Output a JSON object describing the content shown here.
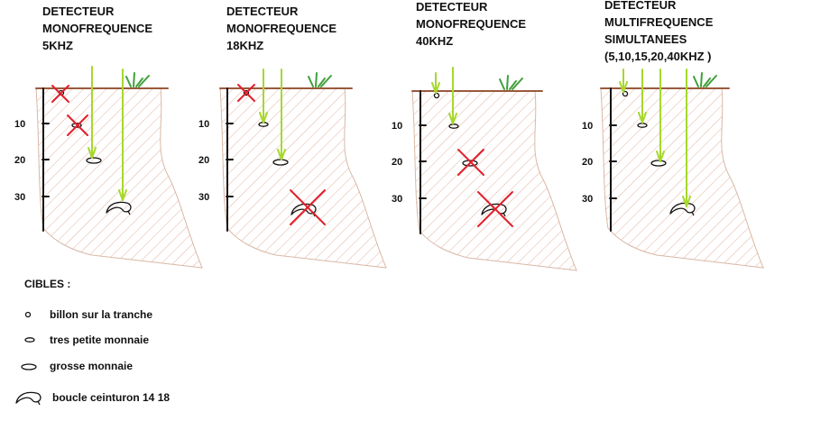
{
  "panels": [
    {
      "title_lines": [
        "DETECTEUR",
        "MONOFREQUENCE",
        "5KHZ"
      ]
    },
    {
      "title_lines": [
        "DETECTEUR",
        "MONOFREQUENCE",
        "18KHZ"
      ]
    },
    {
      "title_lines": [
        "DETECTEUR",
        "MONOFREQUENCE",
        "40KHZ"
      ]
    },
    {
      "title_lines": [
        "DETECTEUR",
        "MULTIFREQUENCE",
        "SIMULTANEES",
        "(5,10,15,20,40KHZ )"
      ]
    }
  ],
  "depth_ticks": [
    "10",
    "20",
    "30"
  ],
  "legend": {
    "title": "CIBLES :",
    "items": [
      {
        "label": "billon sur la tranche",
        "icon": "small-ring-icon"
      },
      {
        "label": "tres petite monnaie",
        "icon": "flat-coin-icon"
      },
      {
        "label": "grosse monnaie",
        "icon": "large-coin-icon"
      },
      {
        "label": "boucle ceinturon 14 18",
        "icon": "belt-buckle-icon"
      }
    ]
  },
  "colors": {
    "ground_line": "#9a5a3c",
    "ground_outline": "#d9b8a6",
    "hatch": "#e3b3a0",
    "beam": "#a6d82c",
    "grass": "#3fa03a",
    "cross": "#e0202c",
    "text": "#111111"
  }
}
